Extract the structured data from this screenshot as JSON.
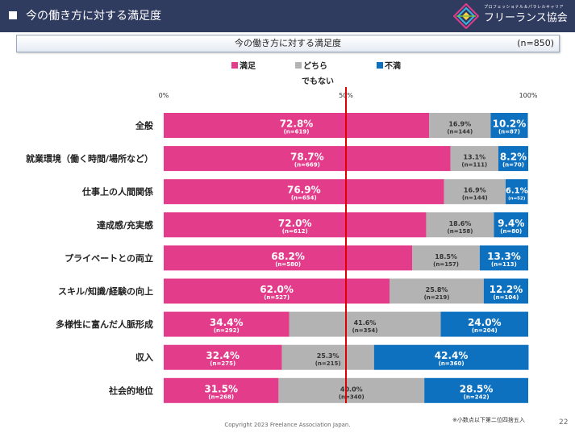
{
  "header": {
    "title": "今の働き方に対する満足度",
    "logo_sub": "プロフェッショナル＆パラレルキャリア",
    "logo_main": "フリーランス協会"
  },
  "subtitle": {
    "text": "今の働き方に対する満足度",
    "n_total": "(n=850)"
  },
  "legend": {
    "items": [
      {
        "label": "満足",
        "color": "#e23c8a"
      },
      {
        "label": "どちら",
        "color": "#b3b3b3"
      },
      {
        "label": "不満",
        "color": "#0d71c0"
      }
    ],
    "extra": "でもない"
  },
  "colors": {
    "satisfied": "#e23c8a",
    "neutral": "#b3b3b3",
    "dissatisfied": "#0d71c0",
    "reference_line": "#e00000"
  },
  "chart_data": {
    "type": "bar",
    "orientation": "horizontal",
    "stacked": true,
    "xlim": [
      0,
      100
    ],
    "x_ticks": [
      "0%",
      "50%",
      "100%"
    ],
    "reference_line": 50,
    "categories": [
      "全般",
      "就業環境（働く時間/場所など）",
      "仕事上の人間関係",
      "達成感/充実感",
      "プライベートとの両立",
      "スキル/知識/経験の向上",
      "多様性に富んだ人脈形成",
      "収入",
      "社会的地位"
    ],
    "series": [
      {
        "name": "満足",
        "values": [
          72.8,
          78.7,
          76.9,
          72.0,
          68.2,
          62.0,
          34.4,
          32.4,
          31.5
        ],
        "labels": [
          "72.8%",
          "78.7%",
          "76.9%",
          "72.0%",
          "68.2%",
          "62.0%",
          "34.4%",
          "32.4%",
          "31.5%"
        ],
        "n": [
          "(n=619)",
          "(n=669)",
          "(n=654)",
          "(n=612)",
          "(n=580)",
          "(n=527)",
          "(n=292)",
          "(n=275)",
          "(n=268)"
        ]
      },
      {
        "name": "どちらでもない",
        "values": [
          16.9,
          13.1,
          16.9,
          18.6,
          18.5,
          25.8,
          41.6,
          25.3,
          40.0
        ],
        "labels": [
          "16.9%",
          "13.1%",
          "16.9%",
          "18.6%",
          "18.5%",
          "25.8%",
          "41.6%",
          "25.3%",
          "40.0%"
        ],
        "n": [
          "(n=144)",
          "(n=111)",
          "(n=144)",
          "(n=158)",
          "(n=157)",
          "(n=219)",
          "(n=354)",
          "(n=215)",
          "(n=340)"
        ]
      },
      {
        "name": "不満",
        "values": [
          10.2,
          8.2,
          6.1,
          9.4,
          13.3,
          12.2,
          24.0,
          42.4,
          28.5
        ],
        "labels": [
          "10.2%",
          "8.2%",
          "6.1%",
          "9.4%",
          "13.3%",
          "12.2%",
          "24.0%",
          "42.4%",
          "28.5%"
        ],
        "n": [
          "(n=87)",
          "(n=70)",
          "(n=52)",
          "(n=80)",
          "(n=113)",
          "(n=104)",
          "(n=204)",
          "(n=360)",
          "(n=242)"
        ]
      }
    ]
  },
  "footer": {
    "copyright": "Copyright 2023 Freelance Association Japan.",
    "footnote": "※小数点以下第二位四捨五入",
    "page_number": "22"
  }
}
